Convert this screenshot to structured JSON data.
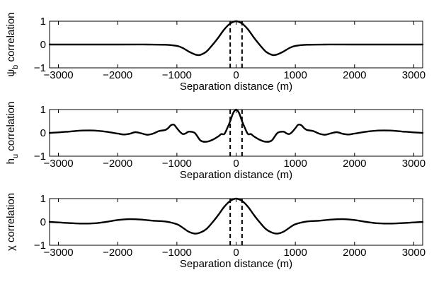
{
  "chart_data": [
    {
      "type": "line",
      "xlabel": "Separation distance (m)",
      "ylabel_main": "ψ",
      "ylabel_sub": "b",
      "ylabel_rest": " correlation",
      "xlim": [
        -3150,
        3150
      ],
      "ylim": [
        -1,
        1
      ],
      "xticks": [
        -3000,
        -2000,
        -1000,
        0,
        1000,
        2000,
        3000
      ],
      "xtick_labels": [
        "−3000",
        "−2000",
        "−1000",
        "0",
        "1000",
        "2000",
        "3000"
      ],
      "yticks": [
        -1,
        0,
        1
      ],
      "ytick_labels": [
        "−1",
        "0",
        "1"
      ],
      "vlines": [
        -100,
        100
      ],
      "series": [
        {
          "x": [
            -3150,
            -2000,
            -1500,
            -1200,
            -1000,
            -900,
            -800,
            -700,
            -650,
            -600,
            -500,
            -400,
            -300,
            -200,
            -100,
            0,
            100,
            200,
            300,
            400,
            500,
            600,
            650,
            700,
            800,
            900,
            1000,
            1200,
            1500,
            2000,
            3150
          ],
          "y": [
            0,
            0,
            0,
            -0.01,
            -0.06,
            -0.15,
            -0.3,
            -0.42,
            -0.45,
            -0.44,
            -0.3,
            -0.02,
            0.3,
            0.65,
            0.9,
            1.0,
            0.9,
            0.65,
            0.3,
            -0.02,
            -0.3,
            -0.44,
            -0.45,
            -0.42,
            -0.3,
            -0.15,
            -0.06,
            -0.01,
            0,
            0,
            0
          ]
        }
      ]
    },
    {
      "type": "line",
      "xlabel": "Separation distance (m)",
      "ylabel_main": "h",
      "ylabel_sub": "u",
      "ylabel_rest": " correlation",
      "xlim": [
        -3150,
        3150
      ],
      "ylim": [
        -1,
        1
      ],
      "xticks": [
        -3000,
        -2000,
        -1000,
        0,
        1000,
        2000,
        3000
      ],
      "xtick_labels": [
        "−3000",
        "−2000",
        "−1000",
        "0",
        "1000",
        "2000",
        "3000"
      ],
      "yticks": [
        -1,
        0,
        1
      ],
      "ytick_labels": [
        "−1",
        "0",
        "1"
      ],
      "vlines": [
        -100,
        100
      ],
      "series": [
        {
          "x": [
            -3150,
            -3000,
            -2800,
            -2600,
            -2400,
            -2200,
            -2000,
            -1900,
            -1800,
            -1700,
            -1600,
            -1500,
            -1400,
            -1300,
            -1200,
            -1150,
            -1100,
            -1050,
            -1000,
            -950,
            -900,
            -850,
            -800,
            -700,
            -600,
            -500,
            -400,
            -300,
            -250,
            -200,
            -150,
            -100,
            -50,
            0,
            50,
            100,
            150,
            200,
            250,
            300,
            400,
            500,
            600,
            700,
            800,
            850,
            900,
            950,
            1000,
            1050,
            1100,
            1150,
            1200,
            1300,
            1400,
            1500,
            1600,
            1700,
            1800,
            1900,
            2000,
            2200,
            2400,
            2600,
            2800,
            3000,
            3150
          ],
          "y": [
            0.0,
            0.02,
            0.06,
            0.1,
            0.1,
            0.05,
            -0.03,
            -0.07,
            -0.04,
            0.03,
            -0.02,
            -0.08,
            -0.03,
            0.08,
            0.12,
            0.2,
            0.33,
            0.35,
            0.2,
            0.05,
            -0.05,
            -0.02,
            0.05,
            0.0,
            -0.33,
            -0.38,
            -0.3,
            -0.15,
            -0.05,
            -0.05,
            0.2,
            0.5,
            0.85,
            1.0,
            0.85,
            0.5,
            0.2,
            -0.05,
            -0.05,
            -0.15,
            -0.3,
            -0.38,
            -0.33,
            0.0,
            0.05,
            -0.02,
            -0.05,
            0.05,
            0.2,
            0.35,
            0.33,
            0.2,
            0.12,
            0.08,
            -0.03,
            -0.08,
            -0.02,
            0.03,
            -0.04,
            -0.07,
            -0.03,
            0.05,
            0.1,
            0.1,
            0.06,
            0.02,
            0.0
          ]
        }
      ]
    },
    {
      "type": "line",
      "xlabel": "Separation distance (m)",
      "ylabel_main": "χ",
      "ylabel_sub": "",
      "ylabel_rest": " correlation",
      "xlim": [
        -3150,
        3150
      ],
      "ylim": [
        -1,
        1
      ],
      "xticks": [
        -3000,
        -2000,
        -1000,
        0,
        1000,
        2000,
        3000
      ],
      "xtick_labels": [
        "−3000",
        "−2000",
        "−1000",
        "0",
        "1000",
        "2000",
        "3000"
      ],
      "yticks": [
        -1,
        0,
        1
      ],
      "ytick_labels": [
        "−1",
        "0",
        "1"
      ],
      "vlines": [
        -100,
        100
      ],
      "series": [
        {
          "x": [
            -3150,
            -3000,
            -2800,
            -2600,
            -2400,
            -2200,
            -2000,
            -1800,
            -1600,
            -1400,
            -1200,
            -1000,
            -900,
            -800,
            -700,
            -600,
            -500,
            -400,
            -300,
            -200,
            -100,
            0,
            100,
            200,
            300,
            400,
            500,
            600,
            700,
            800,
            900,
            1000,
            1200,
            1400,
            1600,
            1800,
            2000,
            2200,
            2400,
            2600,
            2800,
            3000,
            3150
          ],
          "y": [
            0.0,
            -0.02,
            -0.05,
            -0.07,
            -0.06,
            0.0,
            0.08,
            0.12,
            0.1,
            0.05,
            0.02,
            -0.1,
            -0.25,
            -0.42,
            -0.5,
            -0.45,
            -0.3,
            -0.02,
            0.3,
            0.65,
            0.9,
            1.0,
            0.9,
            0.65,
            0.3,
            -0.02,
            -0.3,
            -0.45,
            -0.5,
            -0.42,
            -0.25,
            -0.1,
            0.02,
            0.05,
            0.1,
            0.12,
            0.08,
            0.0,
            -0.06,
            -0.07,
            -0.05,
            -0.02,
            0.0
          ]
        }
      ]
    }
  ]
}
